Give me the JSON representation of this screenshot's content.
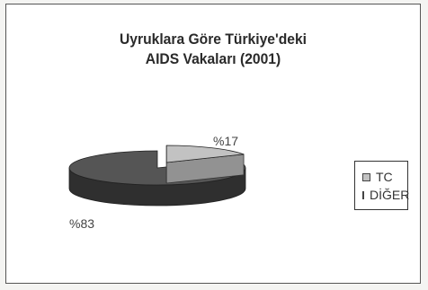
{
  "chart_data": {
    "type": "pie",
    "title": "Uyruklara Göre Türkiye'deki AIDS Vakaları (2001)",
    "title_lines": [
      "Uyruklara Göre Türkiye'deki",
      "AIDS Vakaları (2001)"
    ],
    "categories": [
      "TC",
      "DİĞER"
    ],
    "values": [
      17,
      83
    ],
    "data_labels": [
      "%17",
      "%83"
    ],
    "colors": [
      "#c2c2c2",
      "#555555"
    ],
    "style": "3d-exploded",
    "legend_position": "right"
  }
}
